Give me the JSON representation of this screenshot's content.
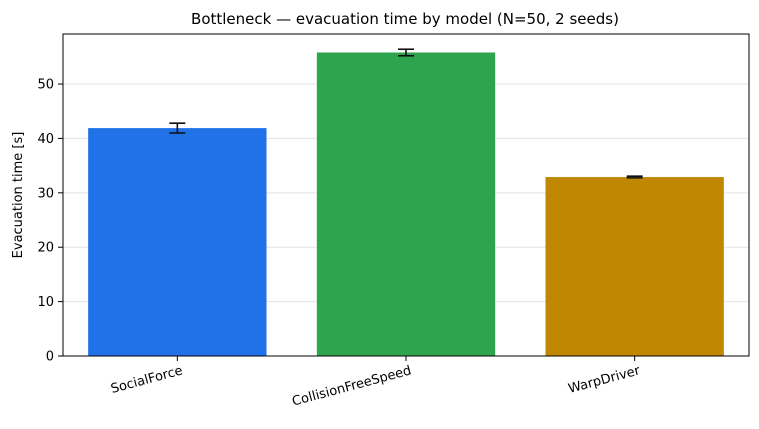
{
  "chart_data": {
    "type": "bar",
    "title": "Bottleneck — evacuation time by model  (N=50, 2 seeds)",
    "xlabel": "",
    "ylabel": "Evacuation time [s]",
    "categories": [
      "SocialForce",
      "CollisionFreeSpeed",
      "WarpDriver"
    ],
    "values": [
      41.9,
      55.8,
      32.9
    ],
    "errors": [
      0.9,
      0.6,
      0.15
    ],
    "colors": [
      "#2171e8",
      "#2ea44f",
      "#c08800"
    ],
    "ylim": [
      0,
      59.2
    ],
    "yticks": [
      0,
      10,
      20,
      30,
      40,
      50
    ],
    "grid": true,
    "legend": "none"
  }
}
